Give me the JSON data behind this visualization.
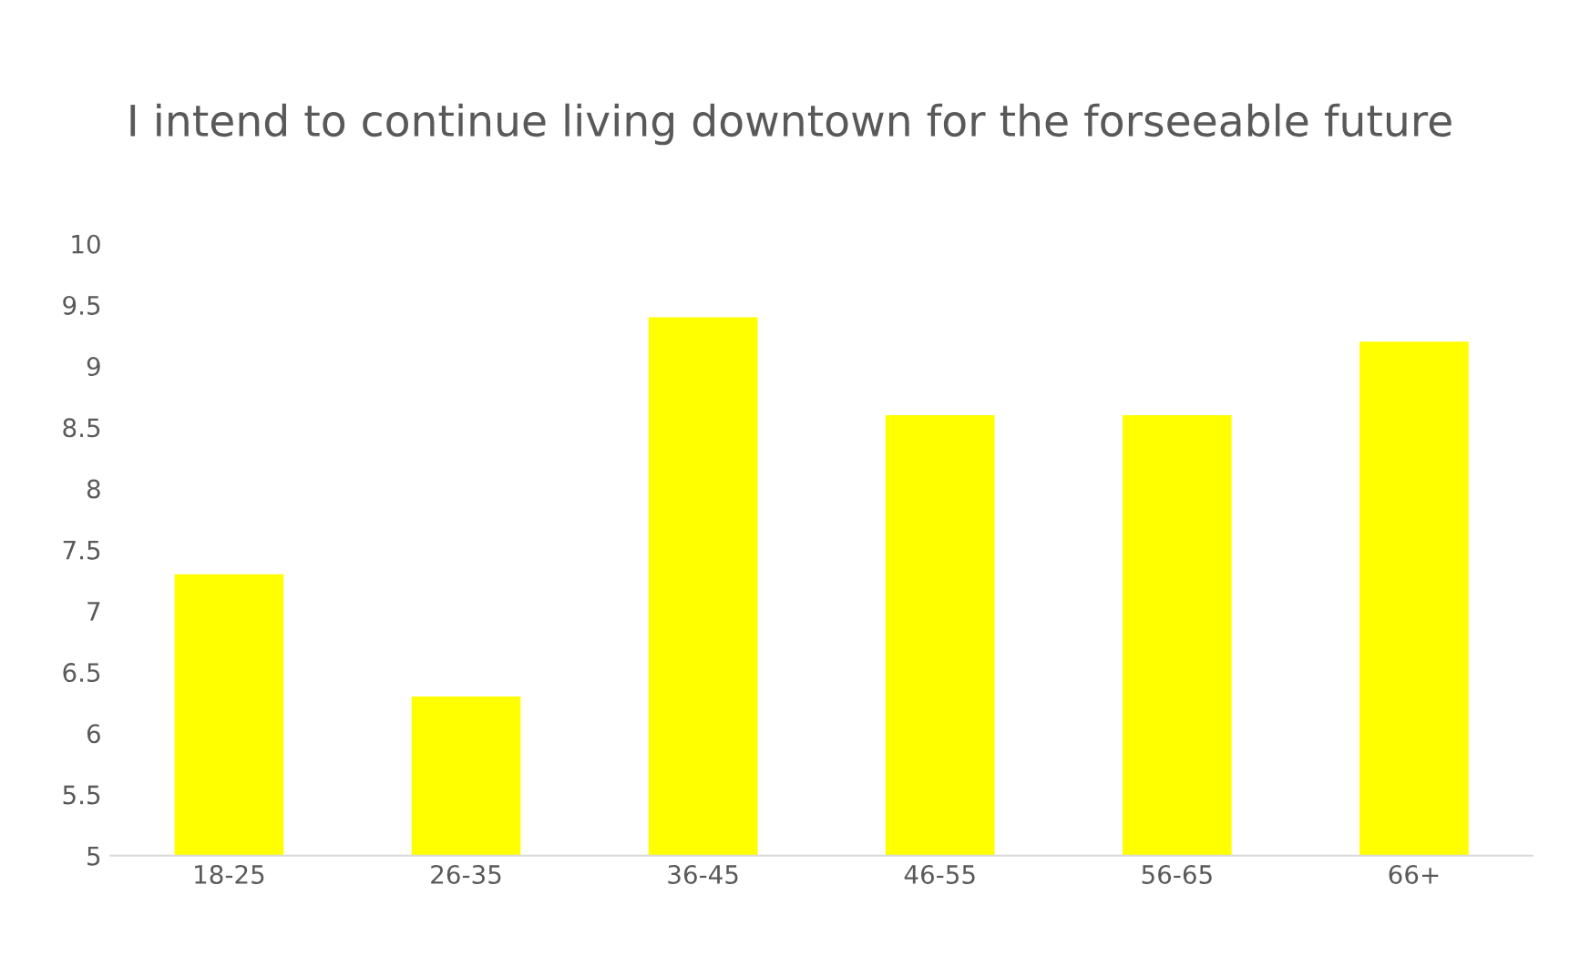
{
  "chart_data": {
    "type": "bar",
    "title": "I intend to continue living downtown for the forseeable future",
    "categories": [
      "18-25",
      "26-35",
      "36-45",
      "46-55",
      "56-65",
      "66+"
    ],
    "values": [
      7.3,
      6.3,
      9.4,
      8.6,
      8.6,
      9.2
    ],
    "color": "#ffff00",
    "ylim": [
      5,
      10
    ],
    "yticks": [
      5,
      5.5,
      6,
      6.5,
      7,
      7.5,
      8,
      8.5,
      9,
      9.5,
      10
    ],
    "grid": false,
    "legend": false
  }
}
